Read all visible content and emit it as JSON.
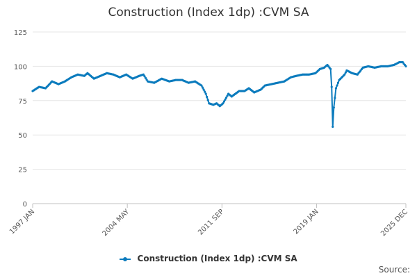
{
  "chart_data": {
    "type": "line",
    "title": "Construction (Index 1dp) :CVM SA",
    "xlabel": "",
    "ylabel": "",
    "ylim": [
      0,
      125
    ],
    "yticks": [
      0,
      25,
      50,
      75,
      100,
      125
    ],
    "xlim": [
      "1997-01",
      "2025-12"
    ],
    "xticks": [
      "1997 JAN",
      "2004 MAY",
      "2011 SEP",
      "2019 JAN",
      "2025 DEC"
    ],
    "grid": "horizontal",
    "legend": "bottom-center",
    "series": [
      {
        "name": "Construction (Index 1dp) :CVM SA",
        "color": "#0b7bbd",
        "points": [
          [
            "1997-01",
            82
          ],
          [
            "1997-07",
            85
          ],
          [
            "1998-01",
            84
          ],
          [
            "1998-07",
            89
          ],
          [
            "1999-01",
            87
          ],
          [
            "1999-07",
            89
          ],
          [
            "2000-01",
            92
          ],
          [
            "2000-07",
            94
          ],
          [
            "2001-01",
            93
          ],
          [
            "2001-04",
            95
          ],
          [
            "2001-10",
            91
          ],
          [
            "2002-04",
            93
          ],
          [
            "2002-10",
            95
          ],
          [
            "2003-04",
            94
          ],
          [
            "2003-10",
            92
          ],
          [
            "2004-04",
            94
          ],
          [
            "2004-10",
            91
          ],
          [
            "2005-04",
            93
          ],
          [
            "2005-08",
            94
          ],
          [
            "2005-12",
            89
          ],
          [
            "2006-06",
            88
          ],
          [
            "2007-01",
            91
          ],
          [
            "2007-08",
            89
          ],
          [
            "2008-02",
            90
          ],
          [
            "2008-08",
            90
          ],
          [
            "2009-02",
            88
          ],
          [
            "2009-08",
            89
          ],
          [
            "2010-02",
            86
          ],
          [
            "2010-06",
            80
          ],
          [
            "2010-09",
            73
          ],
          [
            "2011-01",
            72
          ],
          [
            "2011-04",
            73
          ],
          [
            "2011-07",
            71
          ],
          [
            "2011-10",
            73
          ],
          [
            "2012-03",
            80
          ],
          [
            "2012-06",
            78
          ],
          [
            "2013-01",
            82
          ],
          [
            "2013-06",
            82
          ],
          [
            "2013-10",
            84
          ],
          [
            "2014-03",
            81
          ],
          [
            "2014-09",
            83
          ],
          [
            "2015-01",
            86
          ],
          [
            "2015-07",
            87
          ],
          [
            "2016-01",
            88
          ],
          [
            "2016-07",
            89
          ],
          [
            "2017-01",
            92
          ],
          [
            "2017-06",
            93
          ],
          [
            "2017-12",
            94
          ],
          [
            "2018-06",
            94
          ],
          [
            "2018-12",
            95
          ],
          [
            "2019-04",
            98
          ],
          [
            "2019-08",
            99
          ],
          [
            "2019-11",
            101
          ],
          [
            "2020-02",
            98
          ],
          [
            "2020-03",
            85
          ],
          [
            "2020-04",
            56
          ],
          [
            "2020-05",
            70
          ],
          [
            "2020-07",
            84
          ],
          [
            "2020-10",
            90
          ],
          [
            "2021-03",
            94
          ],
          [
            "2021-05",
            97
          ],
          [
            "2021-10",
            95
          ],
          [
            "2022-03",
            94
          ],
          [
            "2022-08",
            99
          ],
          [
            "2023-01",
            100
          ],
          [
            "2023-07",
            99
          ],
          [
            "2024-01",
            100
          ],
          [
            "2024-07",
            100
          ],
          [
            "2025-01",
            101
          ],
          [
            "2025-06",
            103
          ],
          [
            "2025-09",
            103
          ],
          [
            "2025-12",
            100
          ]
        ]
      }
    ]
  },
  "legend": {
    "label": "Construction (Index 1dp) :CVM SA"
  },
  "footer": {
    "source": "Source:"
  }
}
